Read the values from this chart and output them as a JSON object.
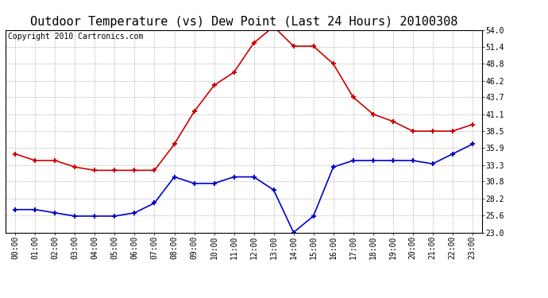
{
  "title": "Outdoor Temperature (vs) Dew Point (Last 24 Hours) 20100308",
  "copyright_text": "Copyright 2010 Cartronics.com",
  "x_labels": [
    "00:00",
    "01:00",
    "02:00",
    "03:00",
    "04:00",
    "05:00",
    "06:00",
    "07:00",
    "08:00",
    "09:00",
    "10:00",
    "11:00",
    "12:00",
    "13:00",
    "14:00",
    "15:00",
    "16:00",
    "17:00",
    "18:00",
    "19:00",
    "20:00",
    "21:00",
    "22:00",
    "23:00"
  ],
  "temp_values": [
    35.0,
    34.0,
    34.0,
    33.0,
    32.5,
    32.5,
    32.5,
    32.5,
    36.5,
    41.5,
    45.5,
    47.5,
    52.0,
    54.5,
    51.5,
    51.5,
    48.8,
    43.7,
    41.1,
    40.0,
    38.5,
    38.5,
    38.5,
    39.5
  ],
  "dew_values": [
    26.5,
    26.5,
    26.0,
    25.5,
    25.5,
    25.5,
    26.0,
    27.5,
    31.5,
    30.5,
    30.5,
    31.5,
    31.5,
    29.5,
    23.0,
    25.5,
    33.0,
    34.0,
    34.0,
    34.0,
    34.0,
    33.5,
    35.0,
    36.5
  ],
  "temp_color": "#cc0000",
  "dew_color": "#0000cc",
  "bg_color": "#ffffff",
  "grid_color": "#bbbbbb",
  "y_ticks": [
    23.0,
    25.6,
    28.2,
    30.8,
    33.3,
    35.9,
    38.5,
    41.1,
    43.7,
    46.2,
    48.8,
    51.4,
    54.0
  ],
  "y_min": 23.0,
  "y_max": 54.0,
  "title_fontsize": 11,
  "copyright_fontsize": 7,
  "tick_fontsize": 7,
  "marker": "+",
  "marker_size": 5,
  "marker_edge_width": 1.5,
  "line_width": 1.2
}
